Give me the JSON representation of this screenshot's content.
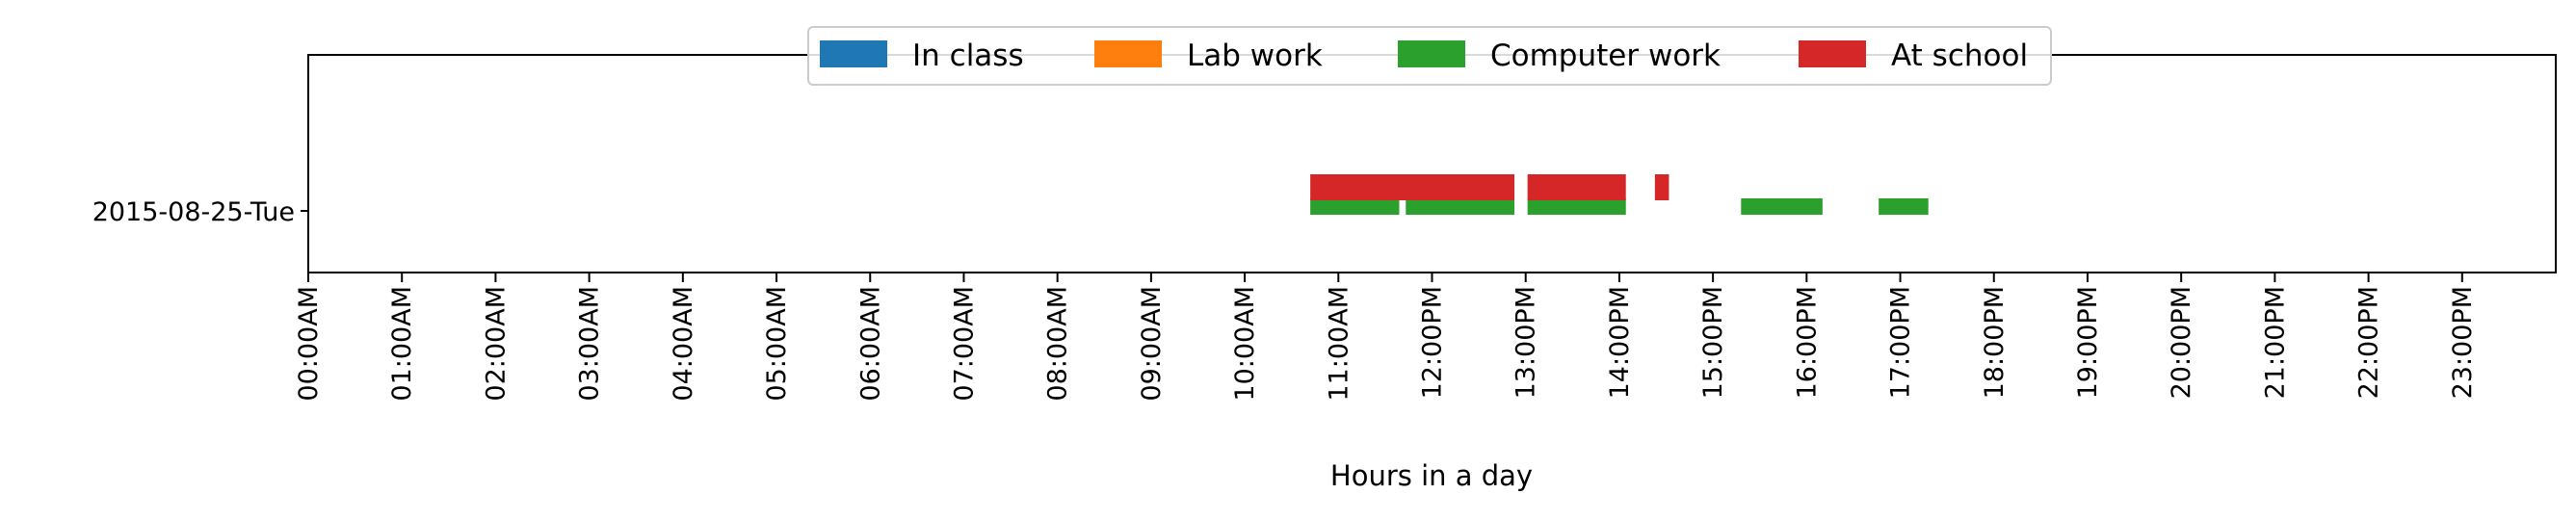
{
  "chart_data": {
    "type": "timeline",
    "xlabel": "Hours in a day",
    "ylabel": "",
    "xlim": [
      0,
      24
    ],
    "x_ticks": [
      0,
      1,
      2,
      3,
      4,
      5,
      6,
      7,
      8,
      9,
      10,
      11,
      12,
      13,
      14,
      15,
      16,
      17,
      18,
      19,
      20,
      21,
      22,
      23
    ],
    "x_tick_labels": [
      "00:00AM",
      "01:00AM",
      "02:00AM",
      "03:00AM",
      "04:00AM",
      "05:00AM",
      "06:00AM",
      "07:00AM",
      "08:00AM",
      "09:00AM",
      "10:00AM",
      "11:00AM",
      "12:00PM",
      "13:00PM",
      "14:00PM",
      "15:00PM",
      "16:00PM",
      "17:00PM",
      "18:00PM",
      "19:00PM",
      "20:00PM",
      "21:00PM",
      "22:00PM",
      "23:00PM"
    ],
    "categories": [
      "2015-08-25-Tue"
    ],
    "legend_position": "top-center",
    "series": [
      {
        "name": "In class",
        "color": "#1f77b4",
        "intervals": []
      },
      {
        "name": "Lab work",
        "color": "#ff7f0e",
        "intervals": []
      },
      {
        "name": "Computer work",
        "color": "#2ca02c",
        "intervals": [
          [
            10.7,
            11.65
          ],
          [
            11.72,
            12.88
          ],
          [
            13.02,
            14.07
          ],
          [
            15.3,
            16.17
          ],
          [
            16.77,
            17.3
          ]
        ]
      },
      {
        "name": "At school",
        "color": "#d62728",
        "intervals": [
          [
            10.7,
            12.88
          ],
          [
            13.02,
            14.07
          ],
          [
            14.38,
            14.53
          ]
        ]
      }
    ]
  }
}
